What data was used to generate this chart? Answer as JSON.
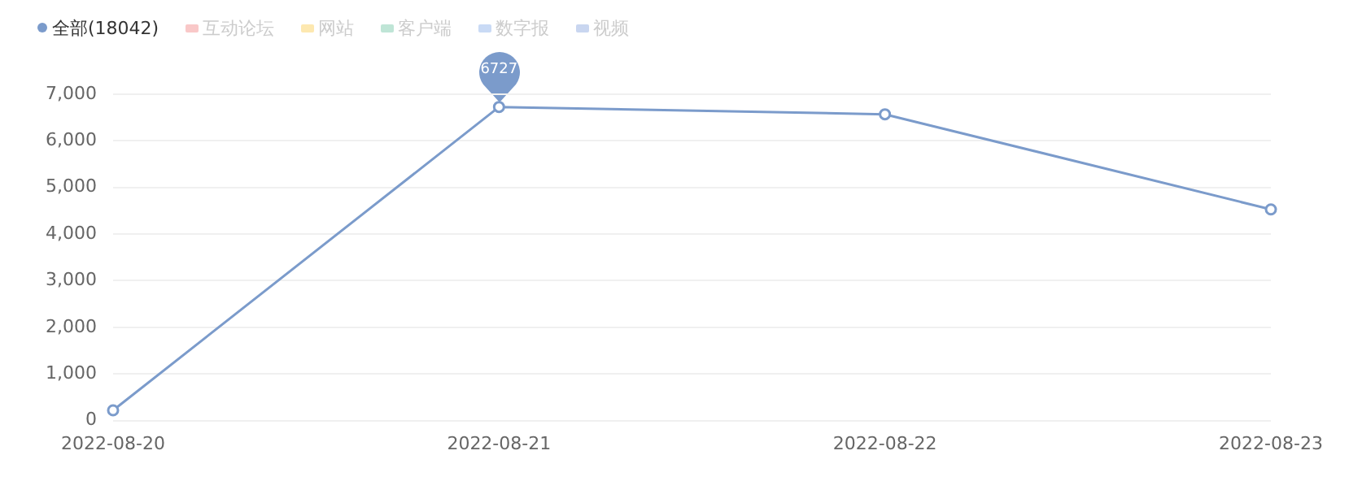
{
  "chart_data": {
    "type": "line",
    "categories": [
      "2022-08-20",
      "2022-08-21",
      "2022-08-22",
      "2022-08-23"
    ],
    "series": [
      {
        "name": "全部(18042)",
        "color": "#7b9bcb",
        "values": [
          220,
          6727,
          6570,
          4530
        ]
      },
      {
        "name": "互动论坛",
        "color": "#f9c8c8",
        "values": [
          null,
          null,
          null,
          null
        ]
      },
      {
        "name": "网站",
        "color": "#fde8b0",
        "values": [
          null,
          null,
          null,
          null
        ]
      },
      {
        "name": "客户端",
        "color": "#bfe5d6",
        "values": [
          null,
          null,
          null,
          null
        ]
      },
      {
        "name": "数字报",
        "color": "#c9daf5",
        "values": [
          null,
          null,
          null,
          null
        ]
      },
      {
        "name": "视频",
        "color": "#c9d6f0",
        "values": [
          null,
          null,
          null,
          null
        ]
      }
    ],
    "ylim": [
      0,
      7000
    ],
    "yticks": [
      0,
      {
        "value": 1000,
        "label": "1,000"
      },
      {
        "value": 2000,
        "label": "2,000"
      },
      {
        "value": 3000,
        "label": "3,000"
      },
      {
        "value": 4000,
        "label": "4,000"
      },
      {
        "value": 5000,
        "label": "5,000"
      },
      {
        "value": 6000,
        "label": "6,000"
      },
      {
        "value": 7000,
        "label": "7,000"
      }
    ],
    "grid": "y",
    "legend": "top left",
    "marker": "circle",
    "line_style": "solid",
    "annotations": [
      {
        "text": "6727",
        "x": "2022-08-21",
        "y": 6727
      }
    ]
  }
}
